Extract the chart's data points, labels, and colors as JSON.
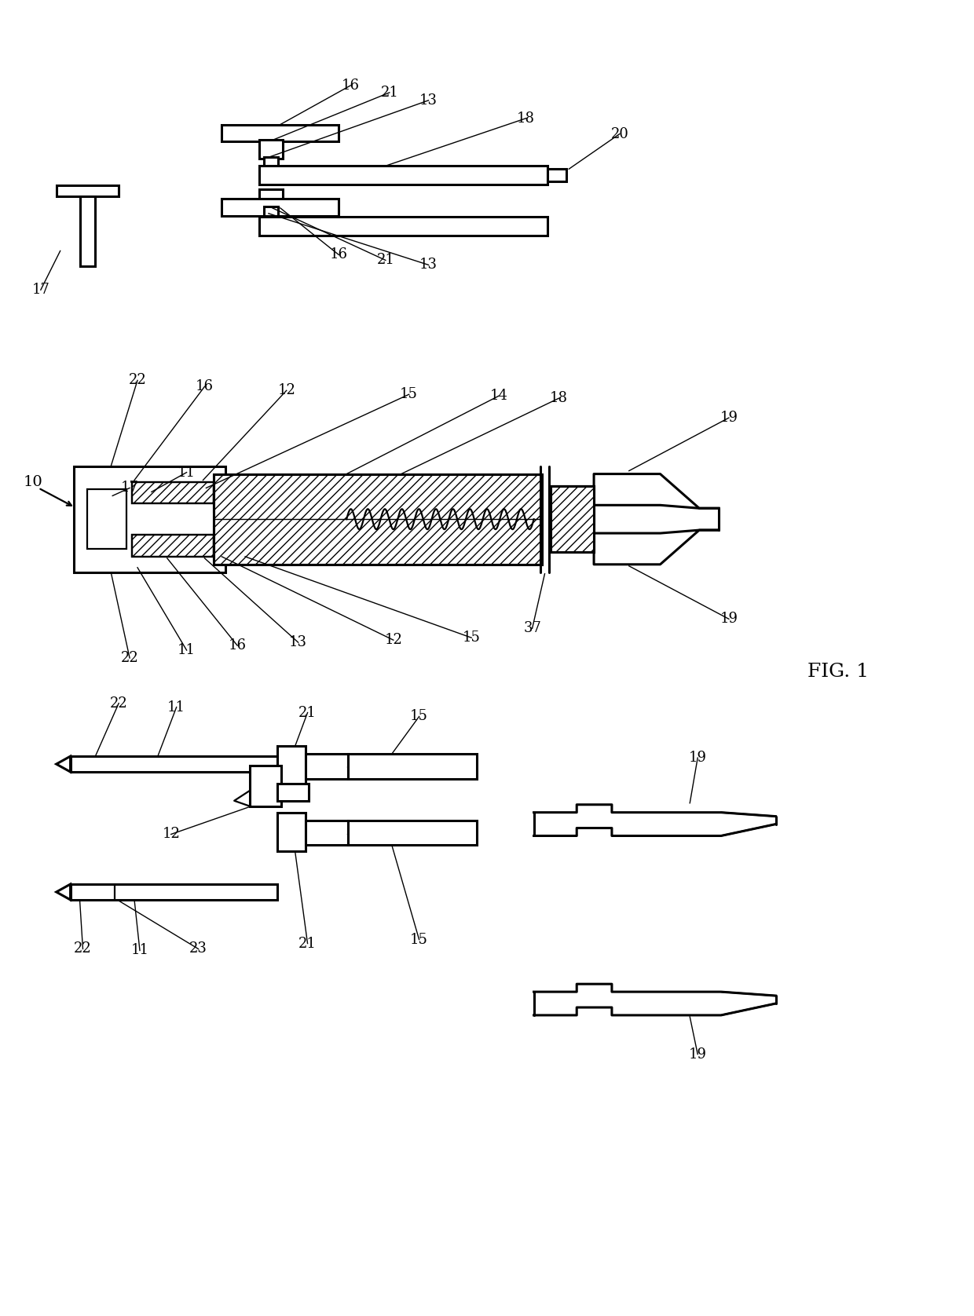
{
  "bg_color": "#ffffff",
  "lc": "#000000",
  "fig1_label": "FIG. 1"
}
